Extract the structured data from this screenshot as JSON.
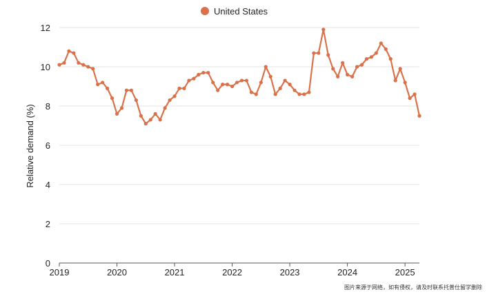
{
  "chart_data": {
    "type": "line",
    "title": "",
    "xlabel": "",
    "ylabel": "Relative demand (%)",
    "ylim": [
      0,
      12
    ],
    "xlim": [
      "2019-01",
      "2025-04"
    ],
    "y_ticks": [
      "0",
      "2",
      "4",
      "6",
      "8",
      "10",
      "12"
    ],
    "x_ticks": [
      "2019",
      "2020",
      "2021",
      "2022",
      "2023",
      "2024",
      "2025"
    ],
    "grid": true,
    "legend_position": "top-center",
    "series": [
      {
        "name": "United States",
        "color": "#d9714a",
        "x": [
          "2019-01",
          "2019-02",
          "2019-03",
          "2019-04",
          "2019-05",
          "2019-06",
          "2019-07",
          "2019-08",
          "2019-09",
          "2019-10",
          "2019-11",
          "2019-12",
          "2020-01",
          "2020-02",
          "2020-03",
          "2020-04",
          "2020-05",
          "2020-06",
          "2020-07",
          "2020-08",
          "2020-09",
          "2020-10",
          "2020-11",
          "2020-12",
          "2021-01",
          "2021-02",
          "2021-03",
          "2021-04",
          "2021-05",
          "2021-06",
          "2021-07",
          "2021-08",
          "2021-09",
          "2021-10",
          "2021-11",
          "2021-12",
          "2022-01",
          "2022-02",
          "2022-03",
          "2022-04",
          "2022-05",
          "2022-06",
          "2022-07",
          "2022-08",
          "2022-09",
          "2022-10",
          "2022-11",
          "2022-12",
          "2023-01",
          "2023-02",
          "2023-03",
          "2023-04",
          "2023-05",
          "2023-06",
          "2023-07",
          "2023-08",
          "2023-09",
          "2023-10",
          "2023-11",
          "2023-12",
          "2024-01",
          "2024-02",
          "2024-03",
          "2024-04",
          "2024-05",
          "2024-06",
          "2024-07",
          "2024-08",
          "2024-09",
          "2024-10",
          "2024-11",
          "2024-12",
          "2025-01",
          "2025-02",
          "2025-03",
          "2025-04"
        ],
        "values": [
          10.1,
          10.2,
          10.8,
          10.7,
          10.2,
          10.1,
          10.0,
          9.9,
          9.1,
          9.2,
          8.9,
          8.4,
          7.6,
          7.9,
          8.8,
          8.8,
          8.3,
          7.5,
          7.1,
          7.3,
          7.6,
          7.3,
          7.9,
          8.3,
          8.5,
          8.9,
          8.9,
          9.3,
          9.4,
          9.6,
          9.7,
          9.7,
          9.2,
          8.8,
          9.1,
          9.1,
          9.0,
          9.2,
          9.3,
          9.3,
          8.7,
          8.6,
          9.2,
          10.0,
          9.5,
          8.6,
          8.9,
          9.3,
          9.1,
          8.8,
          8.6,
          8.6,
          8.7,
          10.7,
          10.7,
          11.9,
          10.6,
          9.9,
          9.5,
          10.2,
          9.6,
          9.5,
          10.0,
          10.1,
          10.4,
          10.5,
          10.7,
          11.2,
          10.9,
          10.4,
          9.3,
          9.9,
          9.2,
          8.4,
          8.6,
          7.5
        ]
      }
    ]
  },
  "watermark": "图片来源于网络，如有侵权，请及时联系托普仕留学删除"
}
